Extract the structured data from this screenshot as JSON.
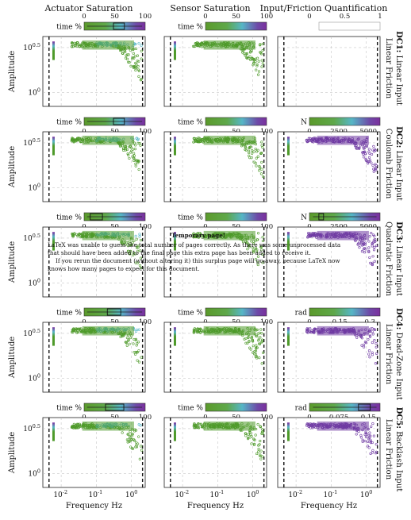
{
  "figure": {
    "column_titles": [
      "Actuator Saturation",
      "Sensor Saturation",
      "Input/Friction Quantification"
    ],
    "ylabel": "Amplitude",
    "xlabel": "Frequency Hz",
    "colors": {
      "gradient": [
        "#5b9a2b",
        "#5b9a2b",
        "#56b6c6",
        "#6e3fa4",
        "#7b2f9e"
      ],
      "point_green": "#4e9a2a",
      "point_purple": "#6f3aa3",
      "dashed_line": "#111111",
      "grid": "#bbbbbb"
    }
  },
  "chart_data": {
    "type": "scatter",
    "x_scale": "log",
    "y_scale": "log",
    "x_ticks": [
      "10^{-2}",
      "10^{-1}",
      "10^{0}"
    ],
    "y_ticks": [
      "10^{0}",
      "10^{0.5}"
    ],
    "xlim": [
      0.003,
      2.5
    ],
    "ylim": [
      0.7,
      4.2
    ],
    "rows": [
      {
        "row_label": "DC1: Linear Input",
        "row_sublabel": "Linear Friction",
        "bars": [
          {
            "symbol": "time %",
            "ticks": [
              "0",
              "50",
              "100"
            ],
            "range": [
              0,
              100
            ],
            "box": [
              48,
              66
            ]
          },
          {
            "symbol": "time %",
            "ticks": [
              "0",
              "50",
              "100"
            ],
            "range": [
              0,
              100
            ],
            "box": null
          },
          {
            "symbol": "",
            "ticks": [
              "0",
              "0.5",
              "1"
            ],
            "range": [
              0,
              1
            ],
            "box": null,
            "empty": true
          }
        ]
      },
      {
        "row_label": "DC2: Linear Input",
        "row_sublabel": "Coulomb Friction",
        "bars": [
          {
            "symbol": "time %",
            "ticks": [
              "0",
              "50",
              "100"
            ],
            "range": [
              0,
              100
            ],
            "box": [
              48,
              66
            ]
          },
          {
            "symbol": "time %",
            "ticks": [
              "0",
              "50",
              "100"
            ],
            "range": [
              0,
              100
            ],
            "box": null
          },
          {
            "symbol": "N",
            "ticks": [
              "0",
              "2500",
              "5000"
            ],
            "range": [
              0,
              6000
            ],
            "box": null
          }
        ]
      },
      {
        "row_label": "DC3: Linear Input",
        "row_sublabel": "Quadratic Friction",
        "bars": [
          {
            "symbol": "time %",
            "ticks": [
              "0",
              "50",
              "100"
            ],
            "range": [
              0,
              100
            ],
            "box": [
              10,
              30
            ]
          },
          {
            "symbol": "time %",
            "ticks": [
              "0",
              "50",
              "100"
            ],
            "range": [
              0,
              100
            ],
            "box": null
          },
          {
            "symbol": "N",
            "ticks": [
              "0",
              "2500",
              "5000"
            ],
            "range": [
              0,
              6000
            ],
            "box": [
              800,
              1200
            ]
          }
        ]
      },
      {
        "row_label": "DC4: Dead-Zone Input",
        "row_sublabel": "Linear Friction",
        "bars": [
          {
            "symbol": "time %",
            "ticks": [
              "0",
              "50",
              "100"
            ],
            "range": [
              0,
              100
            ],
            "box": [
              38,
              60
            ]
          },
          {
            "symbol": "time %",
            "ticks": [
              "0",
              "50",
              "100"
            ],
            "range": [
              0,
              100
            ],
            "box": null
          },
          {
            "symbol": "rad",
            "ticks": [
              "0",
              "0.15",
              "0.3"
            ],
            "range": [
              0,
              0.35
            ],
            "box": null
          }
        ]
      },
      {
        "row_label": "DC5: Backlash Input",
        "row_sublabel": "Linear Friction",
        "bars": [
          {
            "symbol": "time %",
            "ticks": [
              "0",
              "50",
              "100"
            ],
            "range": [
              0,
              100
            ],
            "box": [
              35,
              65
            ]
          },
          {
            "symbol": "time %",
            "ticks": [
              "0",
              "50",
              "100"
            ],
            "range": [
              0,
              100
            ],
            "box": null
          },
          {
            "symbol": "rad",
            "ticks": [
              "0",
              "0.075",
              "0.15"
            ],
            "range": [
              0,
              0.18
            ],
            "box": [
              0.125,
              0.155
            ]
          }
        ]
      }
    ]
  },
  "notice": {
    "title": "Temporary page!",
    "line1": "LaTeX was unable to guess the total number of pages correctly. As there was some unprocessed data that should have been added to the final page this extra page has been added to receive it.",
    "line2": "If you rerun the document (without altering it) this surplus page will go away, because LaTeX now knows how many pages to expect for this document."
  }
}
